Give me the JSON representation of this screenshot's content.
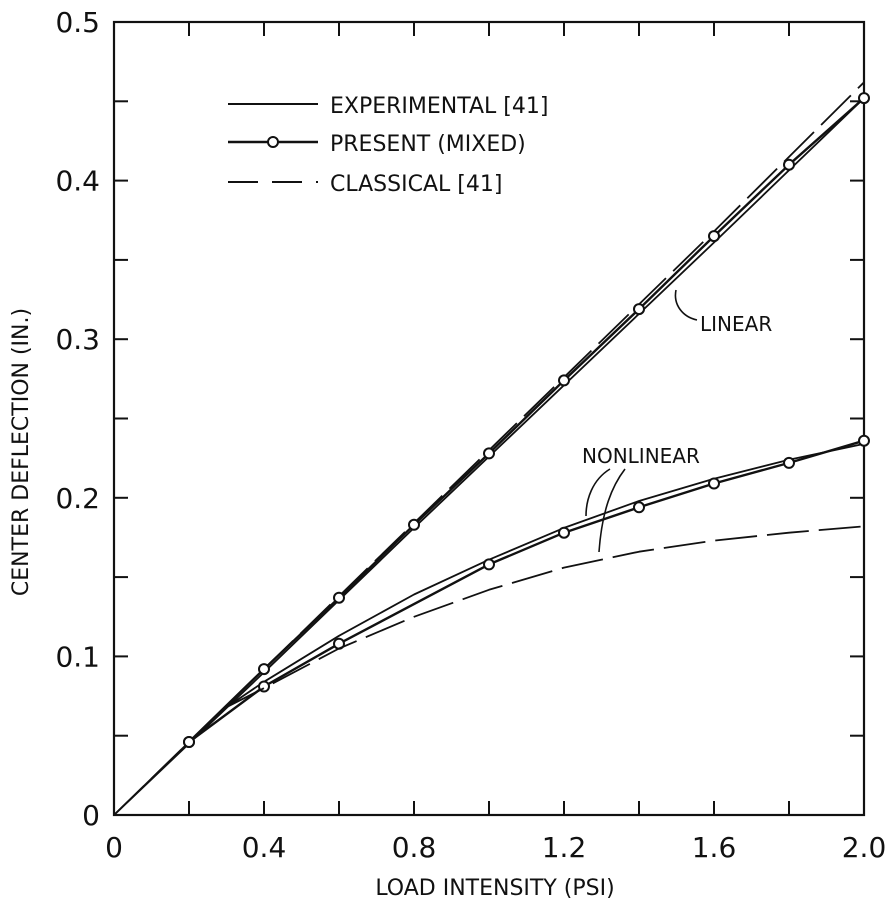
{
  "chart_data": {
    "type": "line",
    "title": "",
    "xlabel": "LOAD INTENSITY (PSI)",
    "ylabel": "CENTER DEFLECTION (IN.)",
    "xlim": [
      0,
      2.0
    ],
    "ylim": [
      0,
      0.5
    ],
    "x_ticks": [
      0,
      0.2,
      0.4,
      0.6,
      0.8,
      1.0,
      1.2,
      1.4,
      1.6,
      1.8,
      2.0
    ],
    "x_tick_labels": [
      "0",
      "",
      "0.4",
      "",
      "0.8",
      "",
      "1.2",
      "",
      "1.6",
      "",
      "2.0"
    ],
    "y_ticks": [
      0,
      0.05,
      0.1,
      0.15,
      0.2,
      0.25,
      0.3,
      0.35,
      0.4,
      0.45,
      0.5
    ],
    "y_tick_labels": [
      "0",
      "",
      "0.1",
      "",
      "0.2",
      "",
      "0.3",
      "",
      "0.4",
      "",
      "0.5"
    ],
    "grid": false,
    "legend_position": "top-left",
    "legend": [
      {
        "label": "EXPERIMENTAL [41]",
        "style": "solid"
      },
      {
        "label": "PRESENT (MIXED)",
        "style": "solid-circle"
      },
      {
        "label": "CLASSICAL [41]",
        "style": "dashed"
      }
    ],
    "annotations": [
      "LINEAR",
      "NONLINEAR"
    ],
    "series": [
      {
        "group": "linear",
        "style": "dashed",
        "x": [
          0,
          0.4,
          0.8,
          1.2,
          1.6,
          2.0
        ],
        "y": [
          0,
          0.092,
          0.184,
          0.276,
          0.368,
          0.462
        ]
      },
      {
        "group": "linear",
        "style": "solid",
        "x": [
          0,
          0.4,
          0.8,
          1.2,
          1.6,
          2.0
        ],
        "y": [
          0,
          0.09,
          0.181,
          0.271,
          0.361,
          0.452
        ]
      },
      {
        "group": "linear",
        "style": "solid-circle",
        "x": [
          0.2,
          0.4,
          0.6,
          0.8,
          1.0,
          1.2,
          1.4,
          1.6,
          1.8,
          2.0
        ],
        "y": [
          0.046,
          0.092,
          0.137,
          0.183,
          0.228,
          0.274,
          0.319,
          0.365,
          0.41,
          0.452
        ]
      },
      {
        "group": "nonlinear",
        "style": "solid",
        "x": [
          0,
          0.2,
          0.3,
          0.4,
          0.6,
          0.8,
          1.0,
          1.2,
          1.4,
          1.6,
          1.8,
          2.0
        ],
        "y": [
          0,
          0.046,
          0.068,
          0.084,
          0.113,
          0.139,
          0.161,
          0.181,
          0.198,
          0.212,
          0.224,
          0.234
        ]
      },
      {
        "group": "nonlinear",
        "style": "solid-circle",
        "x": [
          0.2,
          0.4,
          0.6,
          1.0,
          1.2,
          1.4,
          1.6,
          1.8,
          2.0
        ],
        "y": [
          0.046,
          0.081,
          0.108,
          0.158,
          0.178,
          0.194,
          0.209,
          0.222,
          0.236
        ]
      },
      {
        "group": "nonlinear",
        "style": "dashed",
        "x": [
          0.3,
          0.4,
          0.6,
          0.8,
          1.0,
          1.2,
          1.4,
          1.6,
          1.8,
          2.0
        ],
        "y": [
          0.068,
          0.08,
          0.105,
          0.125,
          0.142,
          0.156,
          0.166,
          0.173,
          0.178,
          0.182
        ]
      }
    ]
  }
}
